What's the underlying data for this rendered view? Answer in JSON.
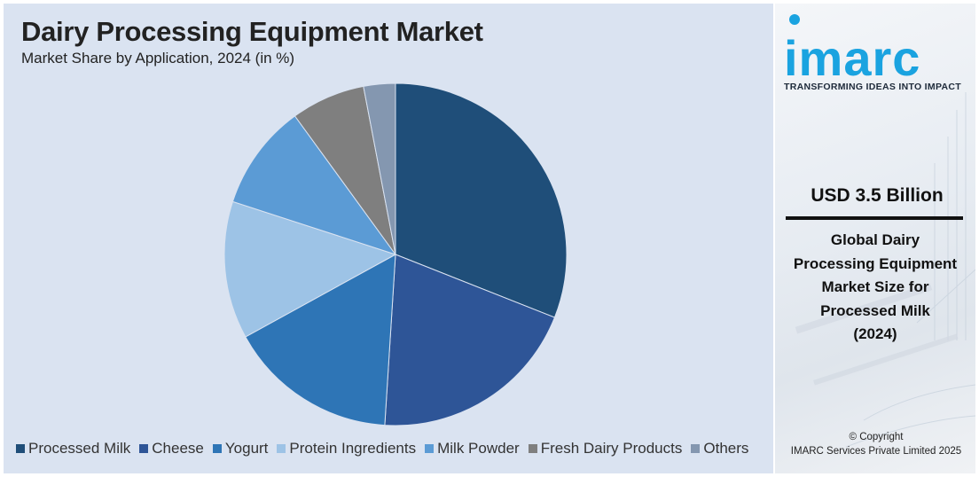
{
  "chart_data": {
    "type": "pie",
    "title": "Dairy Processing Equipment Market",
    "subtitle": "Market Share by Application, 2024 (in %)",
    "categories": [
      "Processed Milk",
      "Cheese",
      "Yogurt",
      "Protein Ingredients",
      "Milk Powder",
      "Fresh Dairy Products",
      "Others"
    ],
    "values": [
      31,
      20,
      16,
      13,
      10,
      7,
      3
    ],
    "colors": [
      "#1f4e79",
      "#2e5597",
      "#2e75b6",
      "#9dc3e6",
      "#5b9bd5",
      "#7f7f7f",
      "#8497b0"
    ],
    "legend_position": "bottom",
    "start_angle": "12 o'clock, clockwise"
  },
  "side_panel": {
    "logo_text": "imarc",
    "tagline": "TRANSFORMING IDEAS INTO IMPACT",
    "market_size": "USD 3.5 Billion",
    "caption_lines": [
      "Global Dairy",
      "Processing Equipment",
      "Market Size for",
      "Processed Milk",
      "(2024)"
    ],
    "copyright_line1": "© Copyright",
    "copyright_line2": "IMARC Services Private Limited 2025",
    "accent_color": "#1aa3e0"
  }
}
